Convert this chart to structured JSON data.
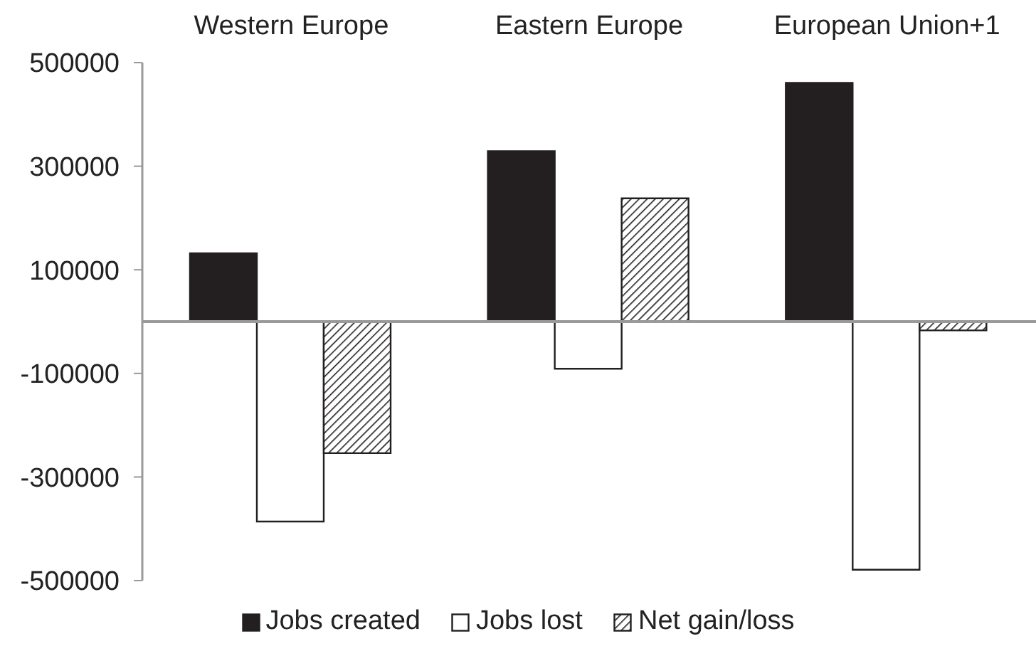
{
  "chart_data": {
    "type": "bar",
    "categories": [
      "Western Europe",
      "Eastern Europe",
      "European Union+1"
    ],
    "series": [
      {
        "name": "Jobs created",
        "color": "#231f20",
        "values": [
          132000,
          329000,
          461000
        ]
      },
      {
        "name": "Jobs lost",
        "color": "#ffffff",
        "values": [
          -386000,
          -91000,
          -479000
        ]
      },
      {
        "name": "Net gain/loss",
        "color": "#231f20",
        "values": [
          -254000,
          238000,
          -17000
        ]
      }
    ],
    "ylim": [
      -500000,
      500000
    ],
    "yticks": [
      -500000,
      -300000,
      -100000,
      100000,
      300000,
      500000
    ],
    "legend": "bottom"
  }
}
